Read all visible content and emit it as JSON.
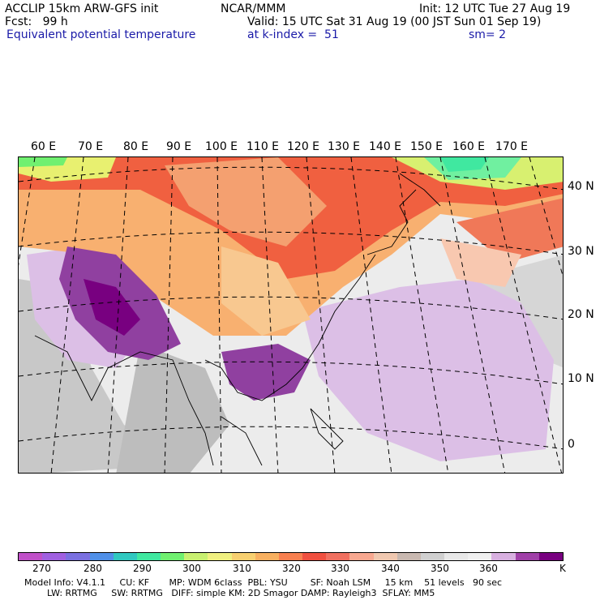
{
  "header": {
    "left_line1": "ACCLIP 15km ARW-GFS init",
    "left_line2": "Fcst:   99 h",
    "variable": "Equivalent potential temperature",
    "center_title": "NCAR/MMM",
    "init": "Init: 12 UTC Tue 27 Aug 19",
    "valid": "Valid: 15 UTC Sat 31 Aug 19 (00 JST Sun 01 Sep 19)",
    "level": "at k-index =  51",
    "smoothing": "sm= 2"
  },
  "map": {
    "longitude_labels": [
      "60 E",
      "70 E",
      "80 E",
      "90 E",
      "100 E",
      "110 E",
      "120 E",
      "130 E",
      "140 E",
      "150 E",
      "160 E",
      "170 E"
    ],
    "latitude_labels": [
      "40 N",
      "30 N",
      "20 N",
      "10 N",
      "0"
    ]
  },
  "colorbar": {
    "colors": [
      "#c050c8",
      "#a060e0",
      "#7a70e0",
      "#5090e8",
      "#30c8c0",
      "#40e8a0",
      "#70f070",
      "#c8f070",
      "#f0f080",
      "#f8d070",
      "#f8b060",
      "#f88050",
      "#f05040",
      "#f07060",
      "#f8a890",
      "#f0c8b0",
      "#c8b8b0",
      "#d0d0d0",
      "#e8e8e8",
      "#f0f0f0",
      "#d8b0e0",
      "#a040a8",
      "#780080"
    ],
    "tick_labels": [
      "270",
      "280",
      "290",
      "300",
      "310",
      "320",
      "330",
      "340",
      "350",
      "360",
      "K"
    ]
  },
  "footer": {
    "line1": "Model Info: V4.1.1     CU: KF       MP: WDM 6class  PBL: YSU        SF: Noah LSM     15 km    51 levels   90 sec",
    "line2": "        LW: RRTMG     SW: RRTMG   DIFF: simple KM: 2D Smagor DAMP: Rayleigh3  SFLAY: MM5"
  }
}
